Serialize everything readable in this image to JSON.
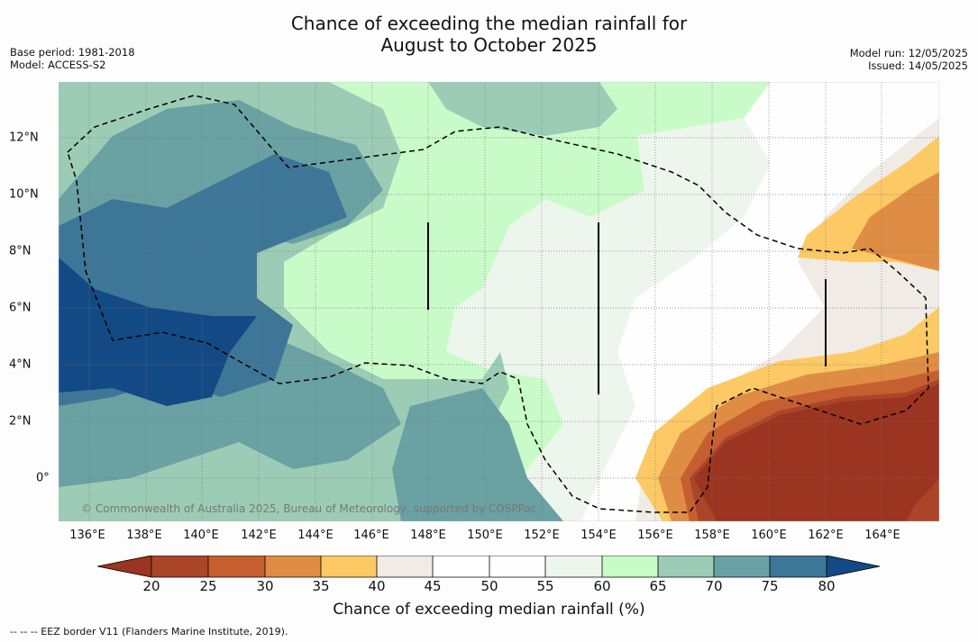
{
  "title_line1": "Chance of exceeding the median rainfall for",
  "title_line2": "August to October 2025",
  "base_period": "Base period: 1981-2018",
  "model": "Model: ACCESS-S2",
  "model_run": "Model run: 12/05/2025",
  "issued": "Issued: 14/05/2025",
  "copyright": "© Commonwealth of Australia 2025, Bureau of Meteorology, supported by COSPPac",
  "footnote": "-- -- -- EEZ border V11 (Flanders Marine Institute, 2019).",
  "colorbar": {
    "label": "Chance of exceeding median rainfall (%)",
    "ticks": [
      "20",
      "25",
      "30",
      "35",
      "40",
      "45",
      "50",
      "55",
      "60",
      "65",
      "70",
      "75",
      "80"
    ],
    "colors": [
      "#9b3420",
      "#ab4528",
      "#c65f30",
      "#df8d44",
      "#fcc964",
      "#f0ebe5",
      "#ffffff",
      "#fefefe",
      "#edf6ec",
      "#c9fbc9",
      "#9cccb5",
      "#6aa1a3",
      "#3e7697",
      "#134a85"
    ]
  },
  "x_ticks": [
    "136°E",
    "138°E",
    "140°E",
    "142°E",
    "144°E",
    "146°E",
    "148°E",
    "150°E",
    "152°E",
    "154°E",
    "156°E",
    "158°E",
    "160°E",
    "162°E",
    "164°E"
  ],
  "y_ticks": [
    "12°N",
    "10°N",
    "8°N",
    "6°N",
    "4°N",
    "2°N",
    "0°"
  ]
}
